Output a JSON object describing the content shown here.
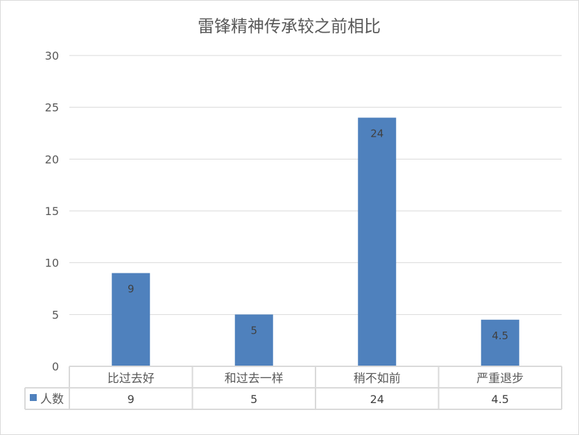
{
  "chart_data": {
    "type": "bar",
    "title": "雷锋精神传承较之前相比",
    "categories": [
      "比过去好",
      "和过去一样",
      "稍不如前",
      "严重退步"
    ],
    "series": [
      {
        "name": "人数",
        "values": [
          9,
          5,
          24,
          4.5
        ],
        "color": "#4f81bd"
      }
    ],
    "ylim": [
      0,
      30
    ],
    "yticks": [
      0,
      5,
      10,
      15,
      20,
      25,
      30
    ],
    "grid": true,
    "data_labels": true,
    "data_table": true
  }
}
